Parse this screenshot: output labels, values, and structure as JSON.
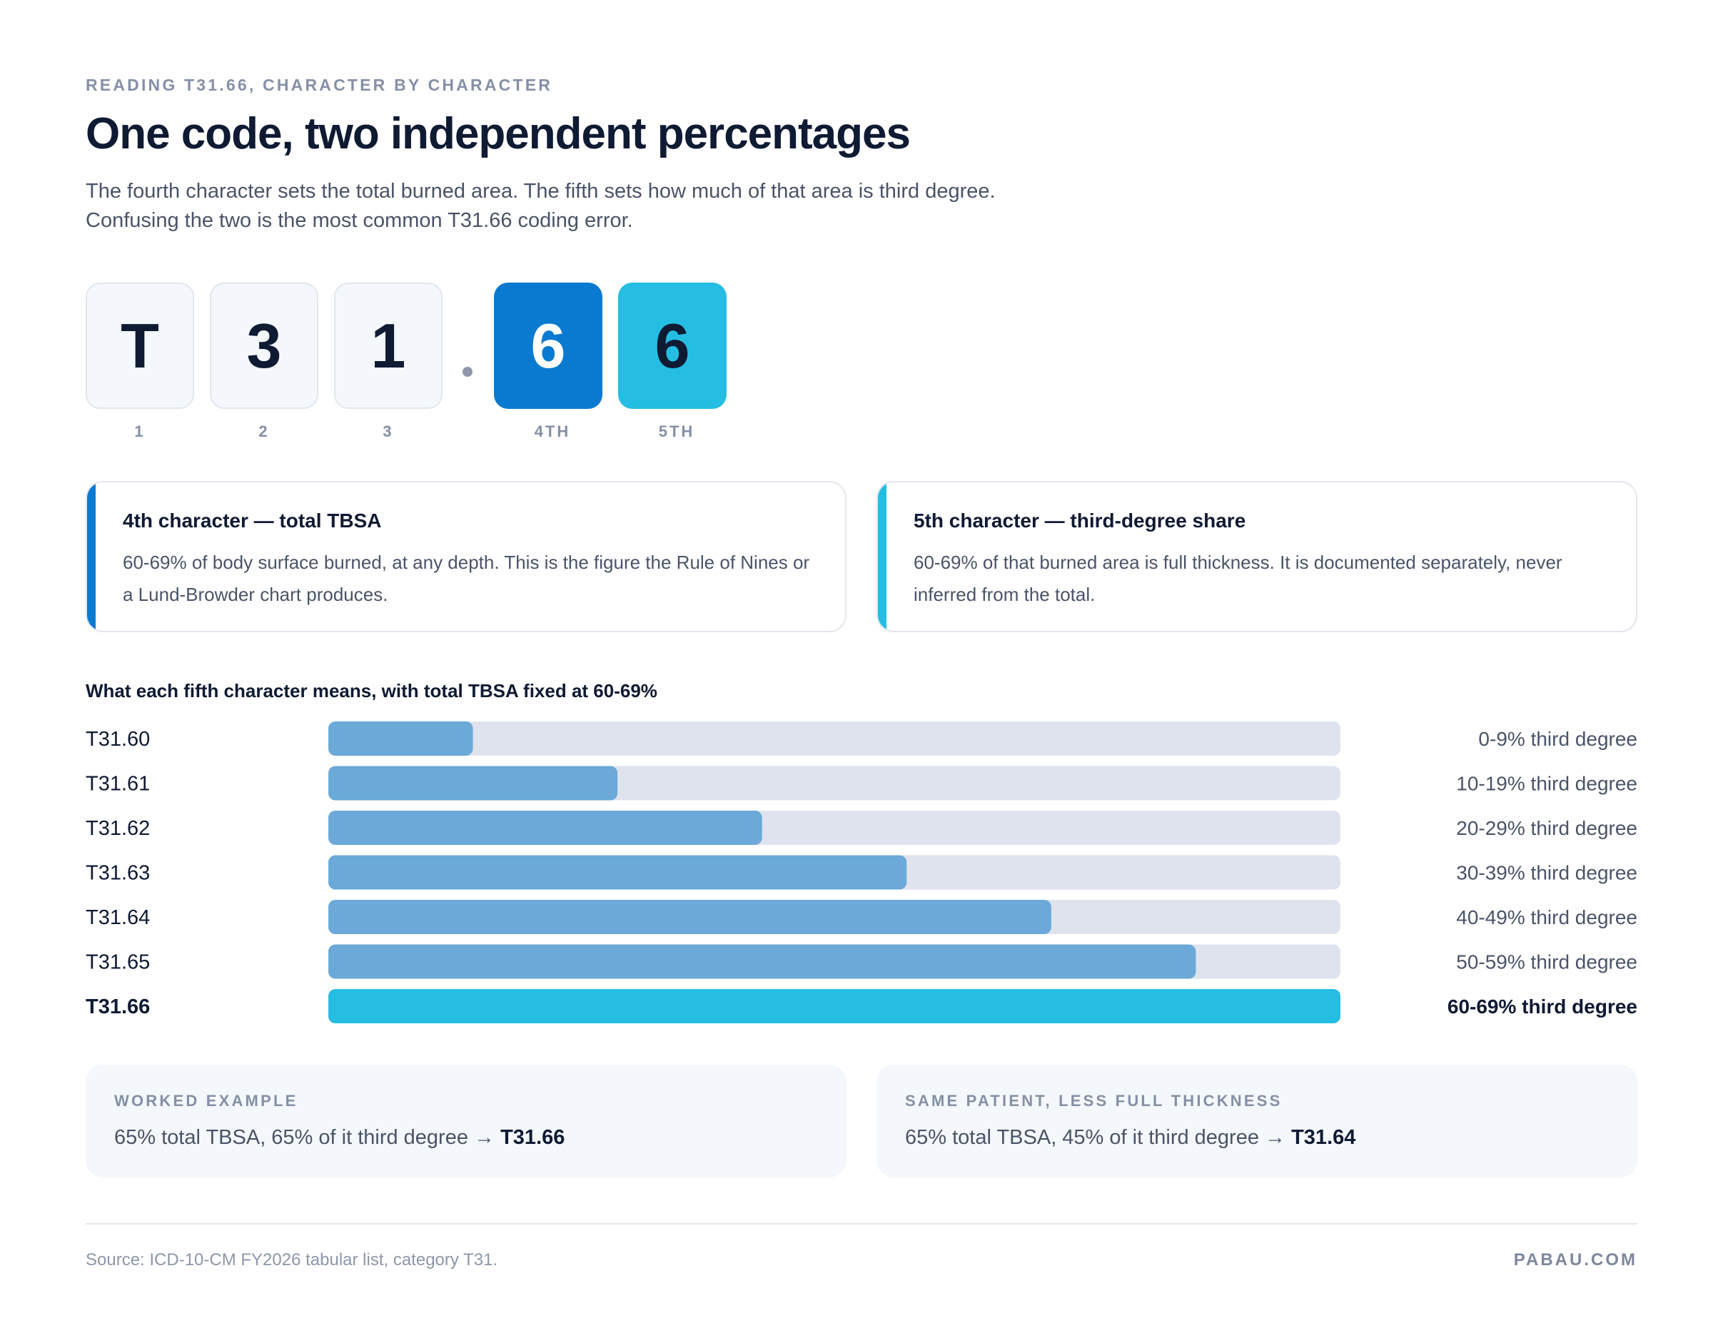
{
  "header": {
    "eyebrow": "READING T31.66, CHARACTER BY CHARACTER",
    "title": "One code, two independent percentages",
    "subtitle_line1": "The fourth character sets the total burned area. The fifth sets how much of that area is third degree.",
    "subtitle_line2": "Confusing the two is the most common T31.66 coding error."
  },
  "code": {
    "chars": [
      "T",
      "3",
      "1",
      "6",
      "6"
    ],
    "positions": [
      "1",
      "2",
      "3",
      "4TH",
      "5TH"
    ],
    "colors": {
      "fourth": "#0a7ad1",
      "fifth": "#25bde2"
    }
  },
  "cards": {
    "fourth": {
      "heading": "4th character — total TBSA",
      "body": "60-69% of body surface burned, at any depth. This is the figure the Rule of Nines or a Lund-Browder chart produces."
    },
    "fifth": {
      "heading": "5th character — third-degree share",
      "body": "60-69% of that burned area is full thickness. It is documented separately, never inferred from the total."
    }
  },
  "chart_data": {
    "type": "bar",
    "orientation": "horizontal",
    "title": "What each fifth character means, with total TBSA fixed at 60-69%",
    "categories": [
      "T31.60",
      "T31.61",
      "T31.62",
      "T31.63",
      "T31.64",
      "T31.65",
      "T31.66"
    ],
    "value_labels": [
      "0-9% third degree",
      "10-19% third degree",
      "20-29% third degree",
      "30-39% third degree",
      "40-49% third degree",
      "50-59% third degree",
      "60-69% third degree"
    ],
    "values": [
      10,
      20,
      30,
      40,
      50,
      60,
      70
    ],
    "xlim": [
      0,
      70
    ],
    "highlight_index": 6,
    "colors": {
      "bar": "#6aa9d8",
      "highlight": "#25bde2",
      "track": "#dfe3ed"
    }
  },
  "examples": {
    "worked": {
      "label": "WORKED EXAMPLE",
      "text": "65% total TBSA, 65% of it third degree → ",
      "code": "T31.66"
    },
    "same_patient": {
      "label": "SAME PATIENT, LESS FULL THICKNESS",
      "text": "65% total TBSA, 45% of it third degree → ",
      "code": "T31.64"
    }
  },
  "footer": {
    "source": "Source: ICD-10-CM FY2026 tabular list, category T31.",
    "brand": "PABAU.COM"
  }
}
